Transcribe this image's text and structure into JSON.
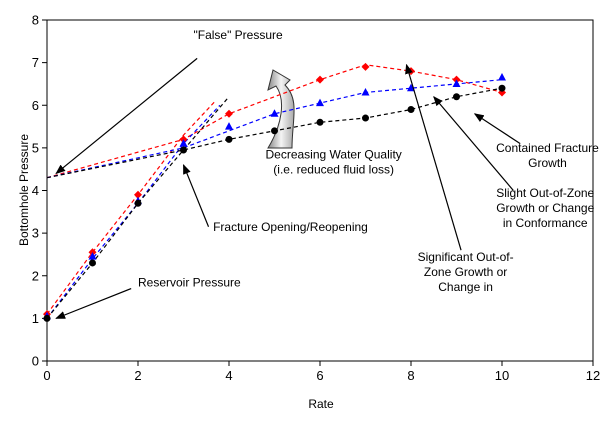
{
  "chart_data": {
    "type": "line",
    "xlabel": "Rate",
    "ylabel": "Bottomhole Pressure",
    "xlim": [
      0,
      12
    ],
    "ylim": [
      0,
      8
    ],
    "xticks": [
      "0",
      "2",
      "4",
      "6",
      "8",
      "10",
      "12"
    ],
    "yticks": [
      "0",
      "1",
      "2",
      "3",
      "4",
      "5",
      "6",
      "7",
      "8"
    ],
    "grid": false,
    "legend": "none",
    "series": [
      {
        "color": "#ff0000",
        "marker": "diamond",
        "points": [
          [
            0,
            1.1
          ],
          [
            1,
            2.55
          ],
          [
            2,
            3.9
          ],
          [
            3,
            5.2
          ],
          [
            4,
            5.8
          ],
          [
            6,
            6.6
          ],
          [
            7,
            6.9
          ],
          [
            8,
            6.8
          ],
          [
            9,
            6.6
          ],
          [
            10,
            6.3
          ]
        ],
        "trend": [
          [
            0,
            4.3
          ],
          [
            3,
            5.2
          ],
          [
            4,
            5.8
          ],
          [
            6,
            6.6
          ],
          [
            7,
            6.95
          ],
          [
            8,
            6.8
          ],
          [
            9,
            6.6
          ],
          [
            10,
            6.3
          ]
        ],
        "frac_line": [
          [
            0,
            1.1
          ],
          [
            1,
            2.55
          ],
          [
            2,
            3.9
          ],
          [
            3,
            5.3
          ],
          [
            3.7,
            6.1
          ]
        ]
      },
      {
        "color": "#0000ff",
        "marker": "triangle",
        "points": [
          [
            0,
            1.05
          ],
          [
            1,
            2.45
          ],
          [
            2,
            3.75
          ],
          [
            3,
            5.1
          ],
          [
            4,
            5.5
          ],
          [
            5,
            5.8
          ],
          [
            6,
            6.05
          ],
          [
            7,
            6.3
          ],
          [
            8,
            6.4
          ],
          [
            9,
            6.5
          ],
          [
            10,
            6.65
          ]
        ],
        "trend": [
          [
            0,
            4.3
          ],
          [
            3,
            5.0
          ],
          [
            4,
            5.4
          ],
          [
            5,
            5.8
          ],
          [
            6,
            6.05
          ],
          [
            7,
            6.3
          ],
          [
            8,
            6.4
          ],
          [
            9,
            6.5
          ],
          [
            10,
            6.6
          ]
        ],
        "frac_line": [
          [
            0,
            1.0
          ],
          [
            1,
            2.4
          ],
          [
            2,
            3.7
          ],
          [
            3,
            5.1
          ],
          [
            3.8,
            6.0
          ]
        ]
      },
      {
        "color": "#000000",
        "marker": "circle",
        "points": [
          [
            0,
            1.0
          ],
          [
            1,
            2.3
          ],
          [
            2,
            3.7
          ],
          [
            3,
            4.95
          ],
          [
            4,
            5.2
          ],
          [
            5,
            5.4
          ],
          [
            6,
            5.6
          ],
          [
            7,
            5.7
          ],
          [
            8,
            5.9
          ],
          [
            9,
            6.2
          ],
          [
            10,
            6.4
          ]
        ],
        "trend": [
          [
            0,
            4.3
          ],
          [
            3,
            4.95
          ],
          [
            4,
            5.2
          ],
          [
            5,
            5.4
          ],
          [
            6,
            5.6
          ],
          [
            7,
            5.7
          ],
          [
            8,
            5.9
          ],
          [
            9,
            6.2
          ],
          [
            10,
            6.4
          ]
        ],
        "frac_line": [
          [
            0,
            1.0
          ],
          [
            1,
            2.3
          ],
          [
            2,
            3.7
          ],
          [
            3,
            4.95
          ],
          [
            4,
            6.2
          ]
        ]
      }
    ],
    "annotations": [
      {
        "lines": [
          "\"False\" Pressure"
        ],
        "anchor": "middle",
        "text_at": [
          4.2,
          7.55
        ],
        "arrow_from": [
          3.3,
          7.1
        ],
        "arrow_to": [
          0.2,
          4.4
        ]
      },
      {
        "lines": [
          "Decreasing Water Quality",
          "(i.e. reduced fluid loss)"
        ],
        "anchor": "middle",
        "text_at": [
          6.3,
          4.75
        ]
      },
      {
        "lines": [
          "Fracture Opening/Reopening"
        ],
        "anchor": "start",
        "text_at": [
          3.65,
          3.05
        ],
        "arrow_from": [
          3.55,
          3.15
        ],
        "arrow_to": [
          3.0,
          4.6
        ]
      },
      {
        "lines": [
          "Reservoir Pressure"
        ],
        "anchor": "start",
        "text_at": [
          2.0,
          1.75
        ],
        "arrow_from": [
          1.85,
          1.7
        ],
        "arrow_to": [
          0.2,
          1.0
        ]
      },
      {
        "lines": [
          "Contained Fracture",
          "Growth"
        ],
        "anchor": "middle",
        "text_at": [
          11.0,
          4.9
        ],
        "arrow_from": [
          10.4,
          5.1
        ],
        "arrow_to": [
          9.4,
          5.8
        ]
      },
      {
        "lines": [
          "Slight Out-of-Zone",
          "Growth or Change",
          "in Conformance"
        ],
        "anchor": "middle",
        "text_at": [
          10.95,
          3.85
        ],
        "arrow_from": [
          10.25,
          4.0
        ],
        "arrow_to": [
          8.5,
          6.2
        ]
      },
      {
        "lines": [
          "Significant Out-of-",
          "Zone Growth or",
          "Change in"
        ],
        "anchor": "middle",
        "text_at": [
          9.2,
          2.35
        ],
        "arrow_from": [
          9.1,
          2.6
        ],
        "arrow_to": [
          7.9,
          6.95
        ]
      }
    ]
  }
}
